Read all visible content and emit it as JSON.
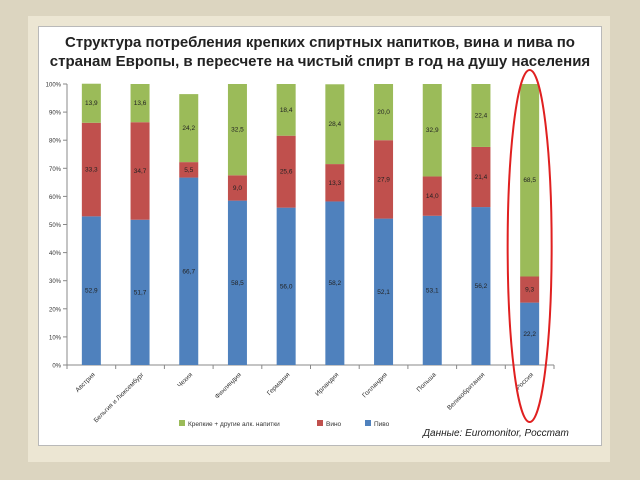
{
  "chart_data": {
    "type": "bar",
    "stacked": true,
    "title": "Структура потребления крепких спиртных напитков, вина и пива по странам Европы, в пересчете на чистый спирт в год на душу населения",
    "title_lines": [
      "Структура потребления крепких спиртных напитков, вина и пива по",
      "странам Европы, в пересчете на чистый спирт в год на душу населения"
    ],
    "categories": [
      "Австрия",
      "Бельгия и Люксембург",
      "Чехия",
      "Финляндия",
      "Германия",
      "Ирландия",
      "Голландия",
      "Польша",
      "Великобритания",
      "Россия"
    ],
    "y_ticks": [
      "0%",
      "10%",
      "20%",
      "30%",
      "40%",
      "50%",
      "60%",
      "70%",
      "80%",
      "90%",
      "100%"
    ],
    "ylim": [
      0,
      100
    ],
    "grid": false,
    "legend_position": "bottom",
    "series": [
      {
        "name": "Пиво",
        "color": "#4f81bd",
        "values": [
          52.9,
          51.7,
          66.7,
          58.5,
          56.0,
          58.2,
          52.1,
          53.1,
          56.2,
          22.2
        ],
        "labels": [
          "52,9",
          "51,7",
          "66,7",
          "58,5",
          "56,0",
          "58,2",
          "52,1",
          "53,1",
          "56,2",
          "22,2"
        ]
      },
      {
        "name": "Вино",
        "color": "#c0504d",
        "values": [
          33.3,
          34.7,
          5.5,
          9.0,
          25.6,
          13.3,
          27.9,
          14.0,
          21.4,
          9.3
        ],
        "labels": [
          "33,3",
          "34,7",
          "5,5",
          "9,0",
          "25,6",
          "13,3",
          "27,9",
          "14,0",
          "21,4",
          "9,3"
        ]
      },
      {
        "name": "Крепкие + другие алк. напитки",
        "color": "#9bbb59",
        "values": [
          13.9,
          13.6,
          24.2,
          32.5,
          18.4,
          28.4,
          20.0,
          32.9,
          22.4,
          68.5
        ],
        "labels": [
          "13,9",
          "13,6",
          "24,2",
          "32,5",
          "18,4",
          "28,4",
          "20,0",
          "32,9",
          "22,4",
          "68,5"
        ]
      }
    ],
    "highlight": {
      "category": "Россия",
      "shape": "ellipse",
      "color": "#e02020"
    }
  },
  "legend": {
    "spirits": "Крепкие + другие алк. напитки",
    "wine": "Вино",
    "beer": "Пиво"
  },
  "source_note": "Данные: Euromonitor, Росстат"
}
